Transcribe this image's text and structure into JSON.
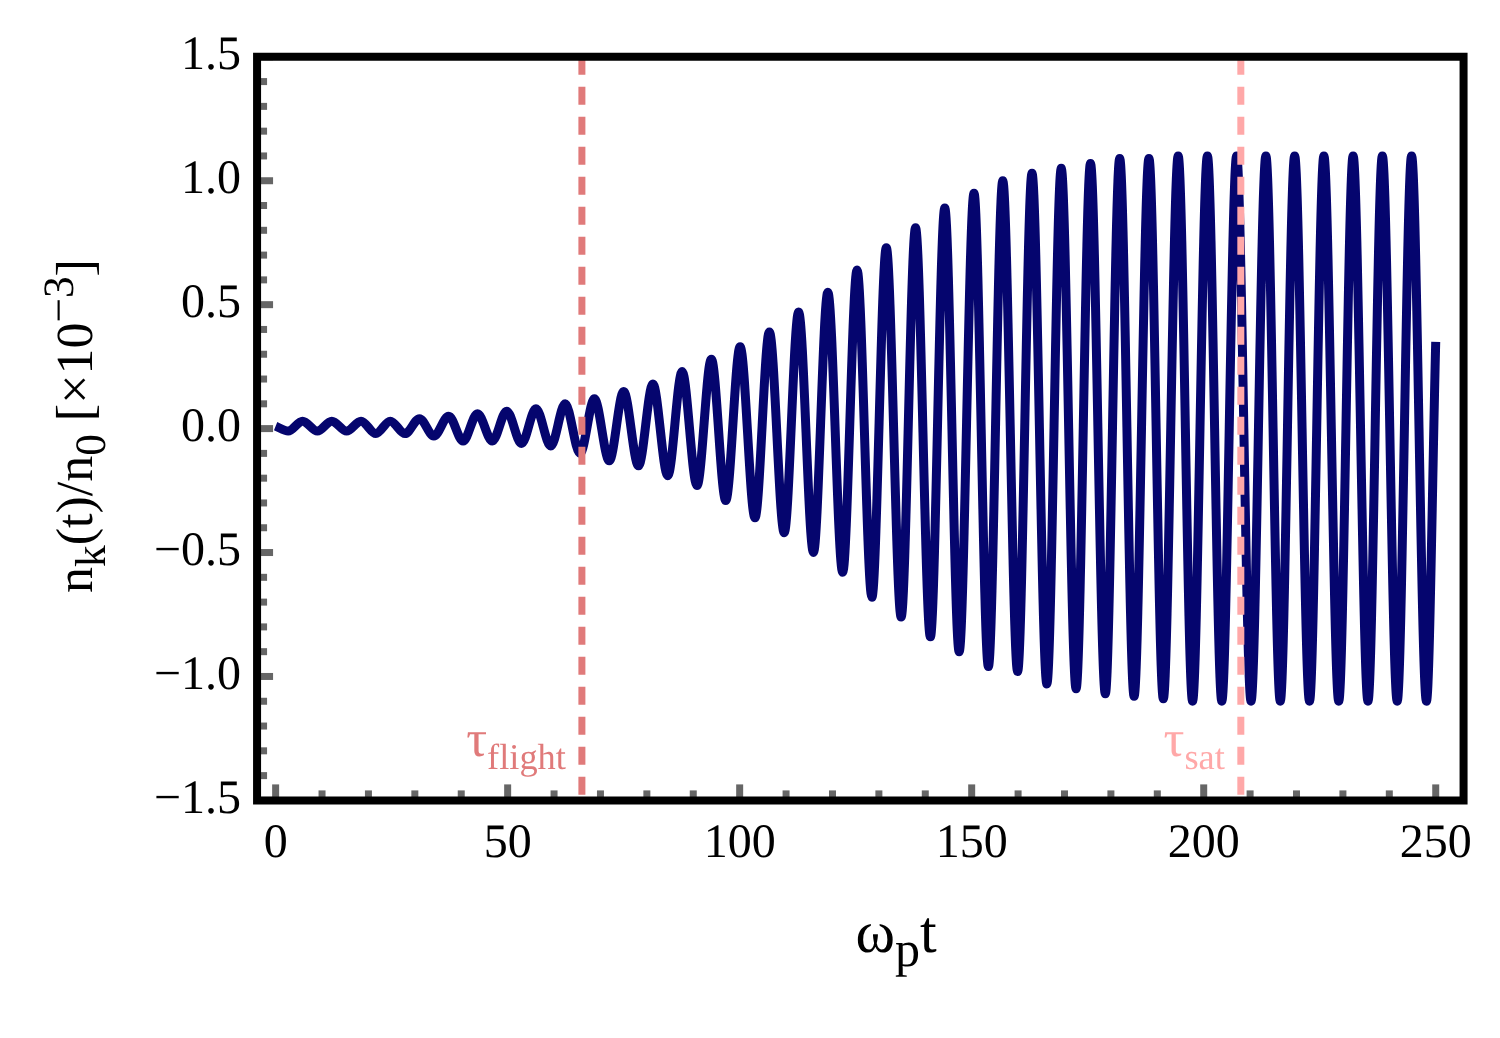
{
  "chart_data": {
    "type": "line",
    "xlabel": "ω$_{p}$t",
    "ylabel": "n$_{k}$(t)/n$_{0}$ [×10$^{−3}$]",
    "x": [
      0,
      2.7,
      5.8,
      9.0,
      12.1,
      15.3,
      18.4,
      21.6,
      24.7,
      27.9,
      31.0,
      34.1,
      37.3,
      40.4,
      43.5,
      46.7,
      49.8,
      53.0,
      56.1,
      59.3,
      62.4,
      65.6,
      68.7,
      71.9,
      75.0,
      78.2,
      81.3,
      84.5,
      87.6,
      90.8,
      93.9,
      97.0,
      100.1,
      103.3,
      106.4,
      109.6,
      112.7,
      115.9,
      119.0,
      122.2,
      125.3,
      128.5,
      131.6,
      134.8,
      137.9,
      141.1,
      144.2,
      147.3,
      150.5,
      153.6,
      156.7,
      159.9,
      163.0,
      166.2,
      169.3,
      172.5,
      175.6,
      178.8,
      181.9,
      185.0,
      188.2,
      191.3,
      194.5,
      197.6,
      200.8,
      203.9,
      207.1,
      210.2,
      213.4,
      216.5,
      219.6,
      222.8,
      225.9,
      229.1,
      232.2,
      235.4,
      238.5,
      241.7,
      244.8,
      248.0,
      250
    ],
    "series": [
      {
        "color": "#05056e",
        "values": [
          0.01,
          -0.01,
          0.03,
          -0.01,
          0.03,
          -0.01,
          0.03,
          -0.02,
          0.03,
          -0.02,
          0.04,
          -0.03,
          0.05,
          -0.05,
          0.06,
          -0.05,
          0.07,
          -0.06,
          0.08,
          -0.07,
          0.1,
          -0.1,
          0.12,
          -0.13,
          0.15,
          -0.15,
          0.18,
          -0.19,
          0.23,
          -0.23,
          0.28,
          -0.29,
          0.33,
          -0.36,
          0.39,
          -0.42,
          0.47,
          -0.5,
          0.55,
          -0.58,
          0.64,
          -0.68,
          0.73,
          -0.76,
          0.81,
          -0.84,
          0.89,
          -0.9,
          0.95,
          -0.96,
          1.0,
          -0.98,
          1.03,
          -1.03,
          1.05,
          -1.05,
          1.07,
          -1.07,
          1.09,
          -1.08,
          1.09,
          -1.09,
          1.1,
          -1.1,
          1.1,
          -1.1,
          1.1,
          -1.1,
          1.1,
          -1.1,
          1.1,
          -1.1,
          1.1,
          -1.1,
          1.1,
          -1.1,
          1.1,
          -1.1,
          1.1,
          -1.1,
          0.35
        ]
      }
    ],
    "xlim": [
      -4,
      256
    ],
    "xticks": [
      0,
      50,
      100,
      150,
      200,
      250
    ],
    "ylim": [
      -1.5,
      1.5
    ],
    "yticks": [
      {
        "value": -1.5,
        "label": "−1.5"
      },
      {
        "value": -1,
        "label": "−1.0"
      },
      {
        "value": -0.5,
        "label": "−0.5"
      },
      {
        "value": 0,
        "label": "0.0"
      },
      {
        "value": 0.5,
        "label": "0.5"
      },
      {
        "value": 1,
        "label": "1.0"
      },
      {
        "value": 1.5,
        "label": "1.5"
      }
    ],
    "ref_lines": [
      {
        "axis": "x",
        "value": 66,
        "label": "τ$_{flight}$",
        "color": "#e07a7a",
        "line_style": "dashed"
      },
      {
        "axis": "x",
        "value": 208,
        "label": "τ$_{sat}$",
        "color": "#ffa8a8",
        "line_style": "dashed"
      }
    ],
    "grid": false,
    "legend": false,
    "marker": "none",
    "line_style": "solid"
  }
}
